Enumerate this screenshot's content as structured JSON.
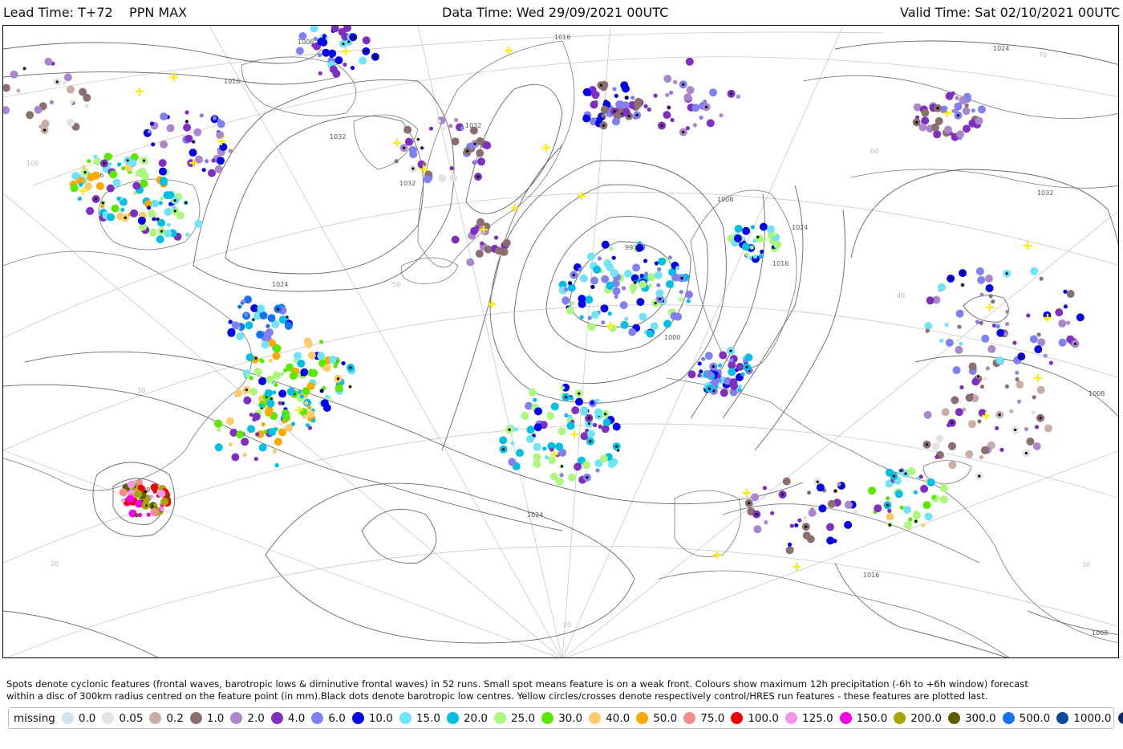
{
  "header": {
    "lead": "Lead Time: T+72",
    "field": "PPN MAX",
    "data_time": "Data Time: Wed 29/09/2021 00UTC",
    "valid_time": "Valid Time: Sat 02/10/2021 00UTC"
  },
  "map": {
    "isobar_labels": [
      "1016",
      "1016",
      "1024",
      "1032",
      "1032",
      "1032",
      "1008",
      "992",
      "1000",
      "1008",
      "1024",
      "1016",
      "1024",
      "1032",
      "1008",
      "1016",
      "1024",
      "1008",
      "1016",
      "1008"
    ],
    "lat_labels": [
      "100",
      "70",
      "60",
      "50",
      "40",
      "30",
      "20",
      "20",
      "30"
    ],
    "markers": {
      "yellow_cross": "control/HRES feature",
      "black_dot": "barotropic low centre"
    }
  },
  "caption": {
    "line1": "Spots denote cyclonic features (frontal waves, barotropic lows & diminutive frontal waves) in 52 runs. Small spot means feature is on a weak front. Colours show maximum 12h precipitation (-6h to +6h window) forecast",
    "line2": "within a disc of 300km radius centred on the feature point (in mm).Black dots denote barotropic low centres. Yellow circles/crosses denote respectively control/HRES run features - these features are plotted last."
  },
  "legend": {
    "title": "missing",
    "items": [
      {
        "label": "0.0",
        "color": "#cfe4ee"
      },
      {
        "label": "0.05",
        "color": "#e3e3e3"
      },
      {
        "label": "0.2",
        "color": "#c9aea8"
      },
      {
        "label": "1.0",
        "color": "#8b6f6f"
      },
      {
        "label": "2.0",
        "color": "#ac86cc"
      },
      {
        "label": "4.0",
        "color": "#7e2fc0"
      },
      {
        "label": "6.0",
        "color": "#8080f0"
      },
      {
        "label": "10.0",
        "color": "#0505e6"
      },
      {
        "label": "15.0",
        "color": "#6fe3f7"
      },
      {
        "label": "20.0",
        "color": "#00bfe3"
      },
      {
        "label": "25.0",
        "color": "#acf77e"
      },
      {
        "label": "30.0",
        "color": "#5be800"
      },
      {
        "label": "40.0",
        "color": "#fccc6b"
      },
      {
        "label": "50.0",
        "color": "#f9a900"
      },
      {
        "label": "75.0",
        "color": "#f58c8c"
      },
      {
        "label": "100.0",
        "color": "#ee0000"
      },
      {
        "label": "125.0",
        "color": "#f595ea"
      },
      {
        "label": "150.0",
        "color": "#f200e6"
      },
      {
        "label": "200.0",
        "color": "#a6a600"
      },
      {
        "label": "300.0",
        "color": "#5e5e00"
      },
      {
        "label": "500.0",
        "color": "#1673f0"
      },
      {
        "label": "1000.0",
        "color": "#0a4aa3"
      },
      {
        "label": "",
        "color": "#0e2a5e"
      }
    ]
  }
}
